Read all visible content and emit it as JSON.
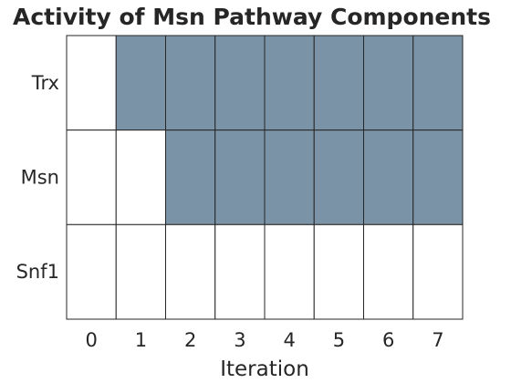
{
  "chart_data": {
    "type": "heatmap",
    "title": "Activity of Msn Pathway Components",
    "xlabel": "Iteration",
    "ylabel": "",
    "x": [
      "0",
      "1",
      "2",
      "3",
      "4",
      "5",
      "6",
      "7"
    ],
    "y": [
      "Trx",
      "Msn",
      "Snf1"
    ],
    "values": [
      [
        0,
        1,
        1,
        1,
        1,
        1,
        1,
        1
      ],
      [
        0,
        0,
        1,
        1,
        1,
        1,
        1,
        1
      ],
      [
        0,
        0,
        0,
        0,
        0,
        0,
        0,
        0
      ]
    ],
    "colors": {
      "active": "#7a93a6",
      "inactive": "#ffffff",
      "grid": "#262626",
      "text": "#262626"
    },
    "grid": true,
    "legend": "none"
  }
}
